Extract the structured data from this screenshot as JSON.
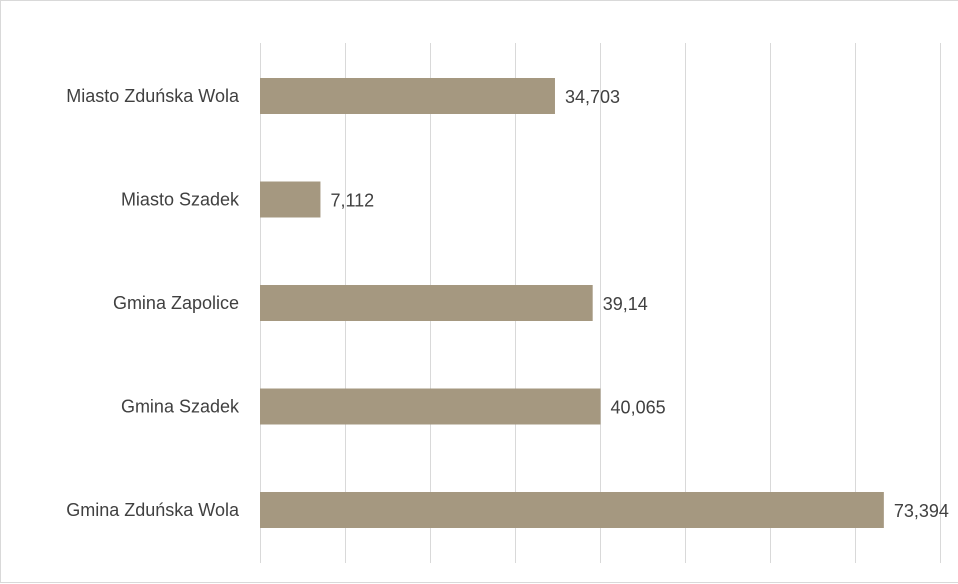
{
  "chart_data": {
    "type": "bar",
    "orientation": "horizontal",
    "title": "",
    "xlabel": "",
    "ylabel": "",
    "categories": [
      "Miasto Zduńska Wola",
      "Miasto Szadek",
      "Gmina Zapolice",
      "Gmina Szadek",
      "Gmina Zduńska Wola"
    ],
    "values": [
      34.703,
      7.112,
      39.14,
      40.065,
      73.394
    ],
    "value_labels": [
      "34,703",
      "7,112",
      "39,14",
      "40,065",
      "73,394"
    ],
    "xlim": [
      0,
      80
    ],
    "grid_step": 10,
    "grid": true,
    "legend": "none",
    "bar_color": "#a59880",
    "grid_color": "#d9d9d9",
    "text_color": "#404040"
  }
}
